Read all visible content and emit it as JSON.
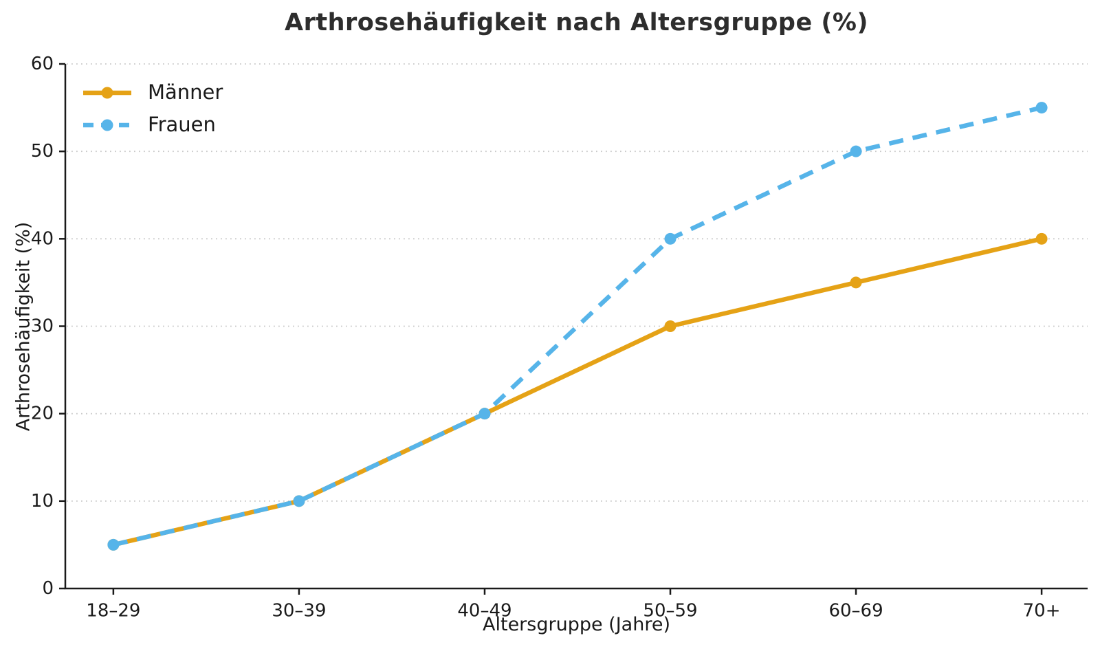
{
  "chart_data": {
    "type": "line",
    "title": "Arthrosehäufigkeit nach Altersgruppe (%)",
    "xlabel": "Altersgruppe (Jahre)",
    "ylabel": "Arthrosehäufigkeit (%)",
    "categories": [
      "18–29",
      "30–39",
      "40–49",
      "50–59",
      "60–69",
      "70+"
    ],
    "y_ticks": [
      0,
      10,
      20,
      30,
      40,
      50,
      60
    ],
    "ylim": [
      0,
      60
    ],
    "grid": "dotted-horizontal",
    "legend_position": "upper-left",
    "series": [
      {
        "name": "Männer",
        "values": [
          5,
          10,
          20,
          30,
          35,
          40
        ],
        "color": "#E5A216",
        "style": "solid",
        "marker": "circle"
      },
      {
        "name": "Frauen",
        "values": [
          5,
          10,
          20,
          40,
          50,
          55
        ],
        "color": "#56B4E9",
        "style": "dashed",
        "marker": "circle"
      }
    ],
    "colors": {
      "axis": "#1a1a1a",
      "grid": "#c9c9c9",
      "text": "#1a1a1a",
      "title": "#2d2d2d",
      "background": "#ffffff"
    }
  }
}
